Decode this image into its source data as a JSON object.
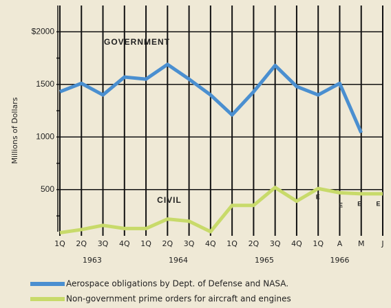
{
  "chart_data": {
    "type": "line",
    "y_label": "Millions of Dollars",
    "categories": [
      "1Q",
      "2Q",
      "3Q",
      "4Q",
      "1Q",
      "2Q",
      "3Q",
      "4Q",
      "1Q",
      "2Q",
      "3Q",
      "4Q",
      "1Q",
      "A",
      "M",
      "J"
    ],
    "years": [
      "1963",
      "1964",
      "1965",
      "1966"
    ],
    "series": [
      {
        "name": "Aerospace obligations by Dept. of Defense and NASA.",
        "color": "#4a8fd0",
        "values": [
          1430,
          1510,
          1400,
          1570,
          1550,
          1690,
          1550,
          1400,
          1210,
          1430,
          1680,
          1480,
          1400,
          1510,
          1040,
          null
        ]
      },
      {
        "name": "Non-government prime orders for aircraft and engines",
        "color": "#c8da6a",
        "values": [
          90,
          120,
          160,
          130,
          130,
          220,
          200,
          100,
          350,
          350,
          520,
          390,
          510,
          470,
          460,
          460
        ]
      }
    ],
    "annotations": [
      "GOVERNMENT",
      "CIVIL",
      "E",
      "E",
      "E",
      "E"
    ],
    "ylim": [
      100,
      2250
    ],
    "yticks": [
      {
        "value": 2000,
        "label": "$2000"
      },
      1500,
      1000,
      500
    ],
    "minor_yticks": [
      250,
      750,
      1250,
      1750
    ],
    "grid": true
  }
}
